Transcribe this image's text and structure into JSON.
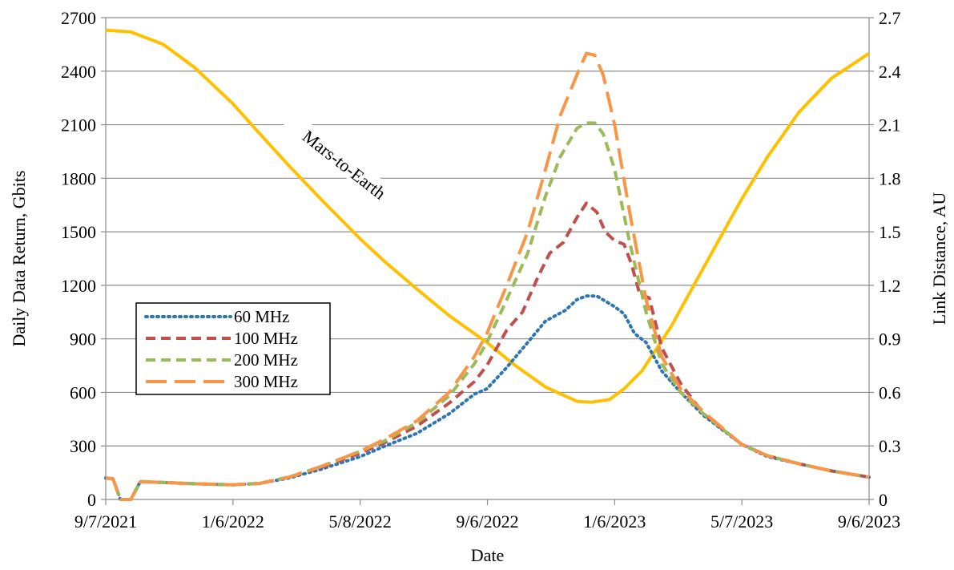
{
  "chart_data": {
    "type": "line",
    "xlabel": "Date",
    "ylabel_left": "Daily Data Return, Gbits",
    "ylabel_right": "Link Distance, AU",
    "x_ticks": [
      "9/7/2021",
      "1/6/2022",
      "5/8/2022",
      "9/6/2022",
      "1/6/2023",
      "5/7/2023",
      "9/6/2023"
    ],
    "xlim": [
      "2021-09-07",
      "2023-09-06"
    ],
    "y_left_ticks": [
      "0",
      "300",
      "600",
      "900",
      "1200",
      "1500",
      "1800",
      "2100",
      "2400",
      "2700"
    ],
    "y_right_ticks": [
      "0",
      "0.3",
      "0.6",
      "0.9",
      "1.2",
      "1.5",
      "1.8",
      "2.1",
      "2.4",
      "2.7"
    ],
    "ylim_left": [
      0,
      2700
    ],
    "ylim_right": [
      0,
      2.7
    ],
    "grid": "horizontal",
    "legend_position": "left",
    "annotation": "Mars-to-Earth",
    "series": [
      {
        "name": "60 MHz",
        "axis": "left",
        "color": "#2e75b6",
        "style": "dotted",
        "points": [
          [
            "2021-09-07",
            120
          ],
          [
            "2021-09-14",
            115
          ],
          [
            "2021-09-21",
            0
          ],
          [
            "2021-10-01",
            0
          ],
          [
            "2021-10-10",
            100
          ],
          [
            "2021-11-01",
            95
          ],
          [
            "2021-12-01",
            88
          ],
          [
            "2022-01-06",
            82
          ],
          [
            "2022-02-01",
            90
          ],
          [
            "2022-03-01",
            120
          ],
          [
            "2022-04-01",
            170
          ],
          [
            "2022-05-08",
            240
          ],
          [
            "2022-06-01",
            300
          ],
          [
            "2022-07-01",
            370
          ],
          [
            "2022-08-01",
            480
          ],
          [
            "2022-08-25",
            590
          ],
          [
            "2022-09-06",
            620
          ],
          [
            "2022-09-25",
            740
          ],
          [
            "2022-10-15",
            880
          ],
          [
            "2022-11-01",
            1000
          ],
          [
            "2022-11-20",
            1060
          ],
          [
            "2022-12-01",
            1120
          ],
          [
            "2022-12-10",
            1140
          ],
          [
            "2022-12-20",
            1140
          ],
          [
            "2023-01-06",
            1080
          ],
          [
            "2023-01-15",
            1040
          ],
          [
            "2023-01-25",
            930
          ],
          [
            "2023-02-05",
            880
          ],
          [
            "2023-02-20",
            720
          ],
          [
            "2023-03-10",
            600
          ],
          [
            "2023-04-01",
            470
          ],
          [
            "2023-05-07",
            310
          ],
          [
            "2023-06-01",
            240
          ],
          [
            "2023-07-01",
            200
          ],
          [
            "2023-08-01",
            160
          ],
          [
            "2023-09-06",
            125
          ]
        ]
      },
      {
        "name": "100 MHz",
        "axis": "left",
        "color": "#c0504d",
        "style": "dashed",
        "points": [
          [
            "2021-09-07",
            120
          ],
          [
            "2021-09-14",
            115
          ],
          [
            "2021-09-21",
            0
          ],
          [
            "2021-10-01",
            0
          ],
          [
            "2021-10-10",
            100
          ],
          [
            "2021-11-01",
            95
          ],
          [
            "2021-12-01",
            88
          ],
          [
            "2022-01-06",
            82
          ],
          [
            "2022-02-01",
            90
          ],
          [
            "2022-03-01",
            125
          ],
          [
            "2022-04-01",
            180
          ],
          [
            "2022-05-08",
            260
          ],
          [
            "2022-06-01",
            320
          ],
          [
            "2022-07-01",
            410
          ],
          [
            "2022-08-01",
            540
          ],
          [
            "2022-08-25",
            660
          ],
          [
            "2022-09-06",
            750
          ],
          [
            "2022-09-25",
            950
          ],
          [
            "2022-10-10",
            1050
          ],
          [
            "2022-10-25",
            1250
          ],
          [
            "2022-11-05",
            1380
          ],
          [
            "2022-11-18",
            1440
          ],
          [
            "2022-12-01",
            1580
          ],
          [
            "2022-12-10",
            1660
          ],
          [
            "2022-12-20",
            1610
          ],
          [
            "2022-12-28",
            1500
          ],
          [
            "2023-01-06",
            1450
          ],
          [
            "2023-01-15",
            1430
          ],
          [
            "2023-01-22",
            1320
          ],
          [
            "2023-01-30",
            1150
          ],
          [
            "2023-02-08",
            1130
          ],
          [
            "2023-02-20",
            850
          ],
          [
            "2023-03-10",
            650
          ],
          [
            "2023-04-01",
            480
          ],
          [
            "2023-05-07",
            310
          ],
          [
            "2023-06-01",
            245
          ],
          [
            "2023-07-01",
            200
          ],
          [
            "2023-08-01",
            160
          ],
          [
            "2023-09-06",
            125
          ]
        ]
      },
      {
        "name": "200 MHz",
        "axis": "left",
        "color": "#9bbb59",
        "style": "dashed",
        "points": [
          [
            "2021-09-07",
            120
          ],
          [
            "2021-09-14",
            115
          ],
          [
            "2021-09-21",
            0
          ],
          [
            "2021-10-01",
            0
          ],
          [
            "2021-10-10",
            100
          ],
          [
            "2021-11-01",
            95
          ],
          [
            "2021-12-01",
            88
          ],
          [
            "2022-01-06",
            82
          ],
          [
            "2022-02-01",
            90
          ],
          [
            "2022-03-01",
            125
          ],
          [
            "2022-04-01",
            185
          ],
          [
            "2022-05-08",
            270
          ],
          [
            "2022-06-01",
            330
          ],
          [
            "2022-07-01",
            430
          ],
          [
            "2022-08-01",
            580
          ],
          [
            "2022-08-25",
            760
          ],
          [
            "2022-09-06",
            880
          ],
          [
            "2022-09-25",
            1120
          ],
          [
            "2022-10-15",
            1380
          ],
          [
            "2022-11-01",
            1700
          ],
          [
            "2022-11-15",
            1920
          ],
          [
            "2022-12-01",
            2080
          ],
          [
            "2022-12-10",
            2110
          ],
          [
            "2022-12-18",
            2110
          ],
          [
            "2022-12-26",
            2050
          ],
          [
            "2023-01-06",
            1850
          ],
          [
            "2023-01-20",
            1450
          ],
          [
            "2023-02-05",
            1050
          ],
          [
            "2023-02-20",
            760
          ],
          [
            "2023-03-10",
            600
          ],
          [
            "2023-04-01",
            480
          ],
          [
            "2023-05-07",
            310
          ],
          [
            "2023-06-01",
            245
          ],
          [
            "2023-07-01",
            200
          ],
          [
            "2023-08-01",
            160
          ],
          [
            "2023-09-06",
            125
          ]
        ]
      },
      {
        "name": "300 MHz",
        "axis": "left",
        "color": "#f79646",
        "style": "longdash",
        "points": [
          [
            "2021-09-07",
            120
          ],
          [
            "2021-09-14",
            115
          ],
          [
            "2021-09-21",
            0
          ],
          [
            "2021-10-01",
            0
          ],
          [
            "2021-10-10",
            100
          ],
          [
            "2021-11-01",
            95
          ],
          [
            "2021-12-01",
            88
          ],
          [
            "2022-01-06",
            82
          ],
          [
            "2022-02-01",
            90
          ],
          [
            "2022-03-01",
            125
          ],
          [
            "2022-04-01",
            185
          ],
          [
            "2022-05-08",
            270
          ],
          [
            "2022-06-01",
            340
          ],
          [
            "2022-07-01",
            440
          ],
          [
            "2022-08-01",
            600
          ],
          [
            "2022-08-25",
            800
          ],
          [
            "2022-09-06",
            930
          ],
          [
            "2022-09-25",
            1200
          ],
          [
            "2022-10-15",
            1500
          ],
          [
            "2022-11-01",
            1850
          ],
          [
            "2022-11-15",
            2150
          ],
          [
            "2022-12-01",
            2380
          ],
          [
            "2022-12-10",
            2500
          ],
          [
            "2022-12-18",
            2490
          ],
          [
            "2022-12-26",
            2380
          ],
          [
            "2023-01-06",
            2100
          ],
          [
            "2023-01-20",
            1620
          ],
          [
            "2023-02-05",
            1120
          ],
          [
            "2023-02-20",
            800
          ],
          [
            "2023-03-10",
            620
          ],
          [
            "2023-04-01",
            490
          ],
          [
            "2023-05-07",
            310
          ],
          [
            "2023-06-01",
            245
          ],
          [
            "2023-07-01",
            200
          ],
          [
            "2023-08-01",
            160
          ],
          [
            "2023-09-06",
            125
          ]
        ]
      },
      {
        "name": "Mars-to-Earth",
        "axis": "right",
        "color": "#ffc000",
        "style": "solid",
        "points": [
          [
            "2021-09-07",
            2.63
          ],
          [
            "2021-10-01",
            2.62
          ],
          [
            "2021-11-01",
            2.55
          ],
          [
            "2021-12-01",
            2.42
          ],
          [
            "2022-01-06",
            2.22
          ],
          [
            "2022-02-01",
            2.05
          ],
          [
            "2022-03-01",
            1.87
          ],
          [
            "2022-04-01",
            1.68
          ],
          [
            "2022-05-08",
            1.46
          ],
          [
            "2022-06-01",
            1.33
          ],
          [
            "2022-07-01",
            1.18
          ],
          [
            "2022-08-01",
            1.03
          ],
          [
            "2022-09-06",
            0.88
          ],
          [
            "2022-10-01",
            0.76
          ],
          [
            "2022-11-01",
            0.63
          ],
          [
            "2022-12-01",
            0.55
          ],
          [
            "2022-12-15",
            0.545
          ],
          [
            "2023-01-01",
            0.56
          ],
          [
            "2023-01-15",
            0.62
          ],
          [
            "2023-02-01",
            0.72
          ],
          [
            "2023-03-01",
            0.97
          ],
          [
            "2023-04-01",
            1.3
          ],
          [
            "2023-05-07",
            1.68
          ],
          [
            "2023-06-01",
            1.92
          ],
          [
            "2023-07-01",
            2.17
          ],
          [
            "2023-08-01",
            2.36
          ],
          [
            "2023-09-06",
            2.5
          ]
        ]
      }
    ]
  }
}
